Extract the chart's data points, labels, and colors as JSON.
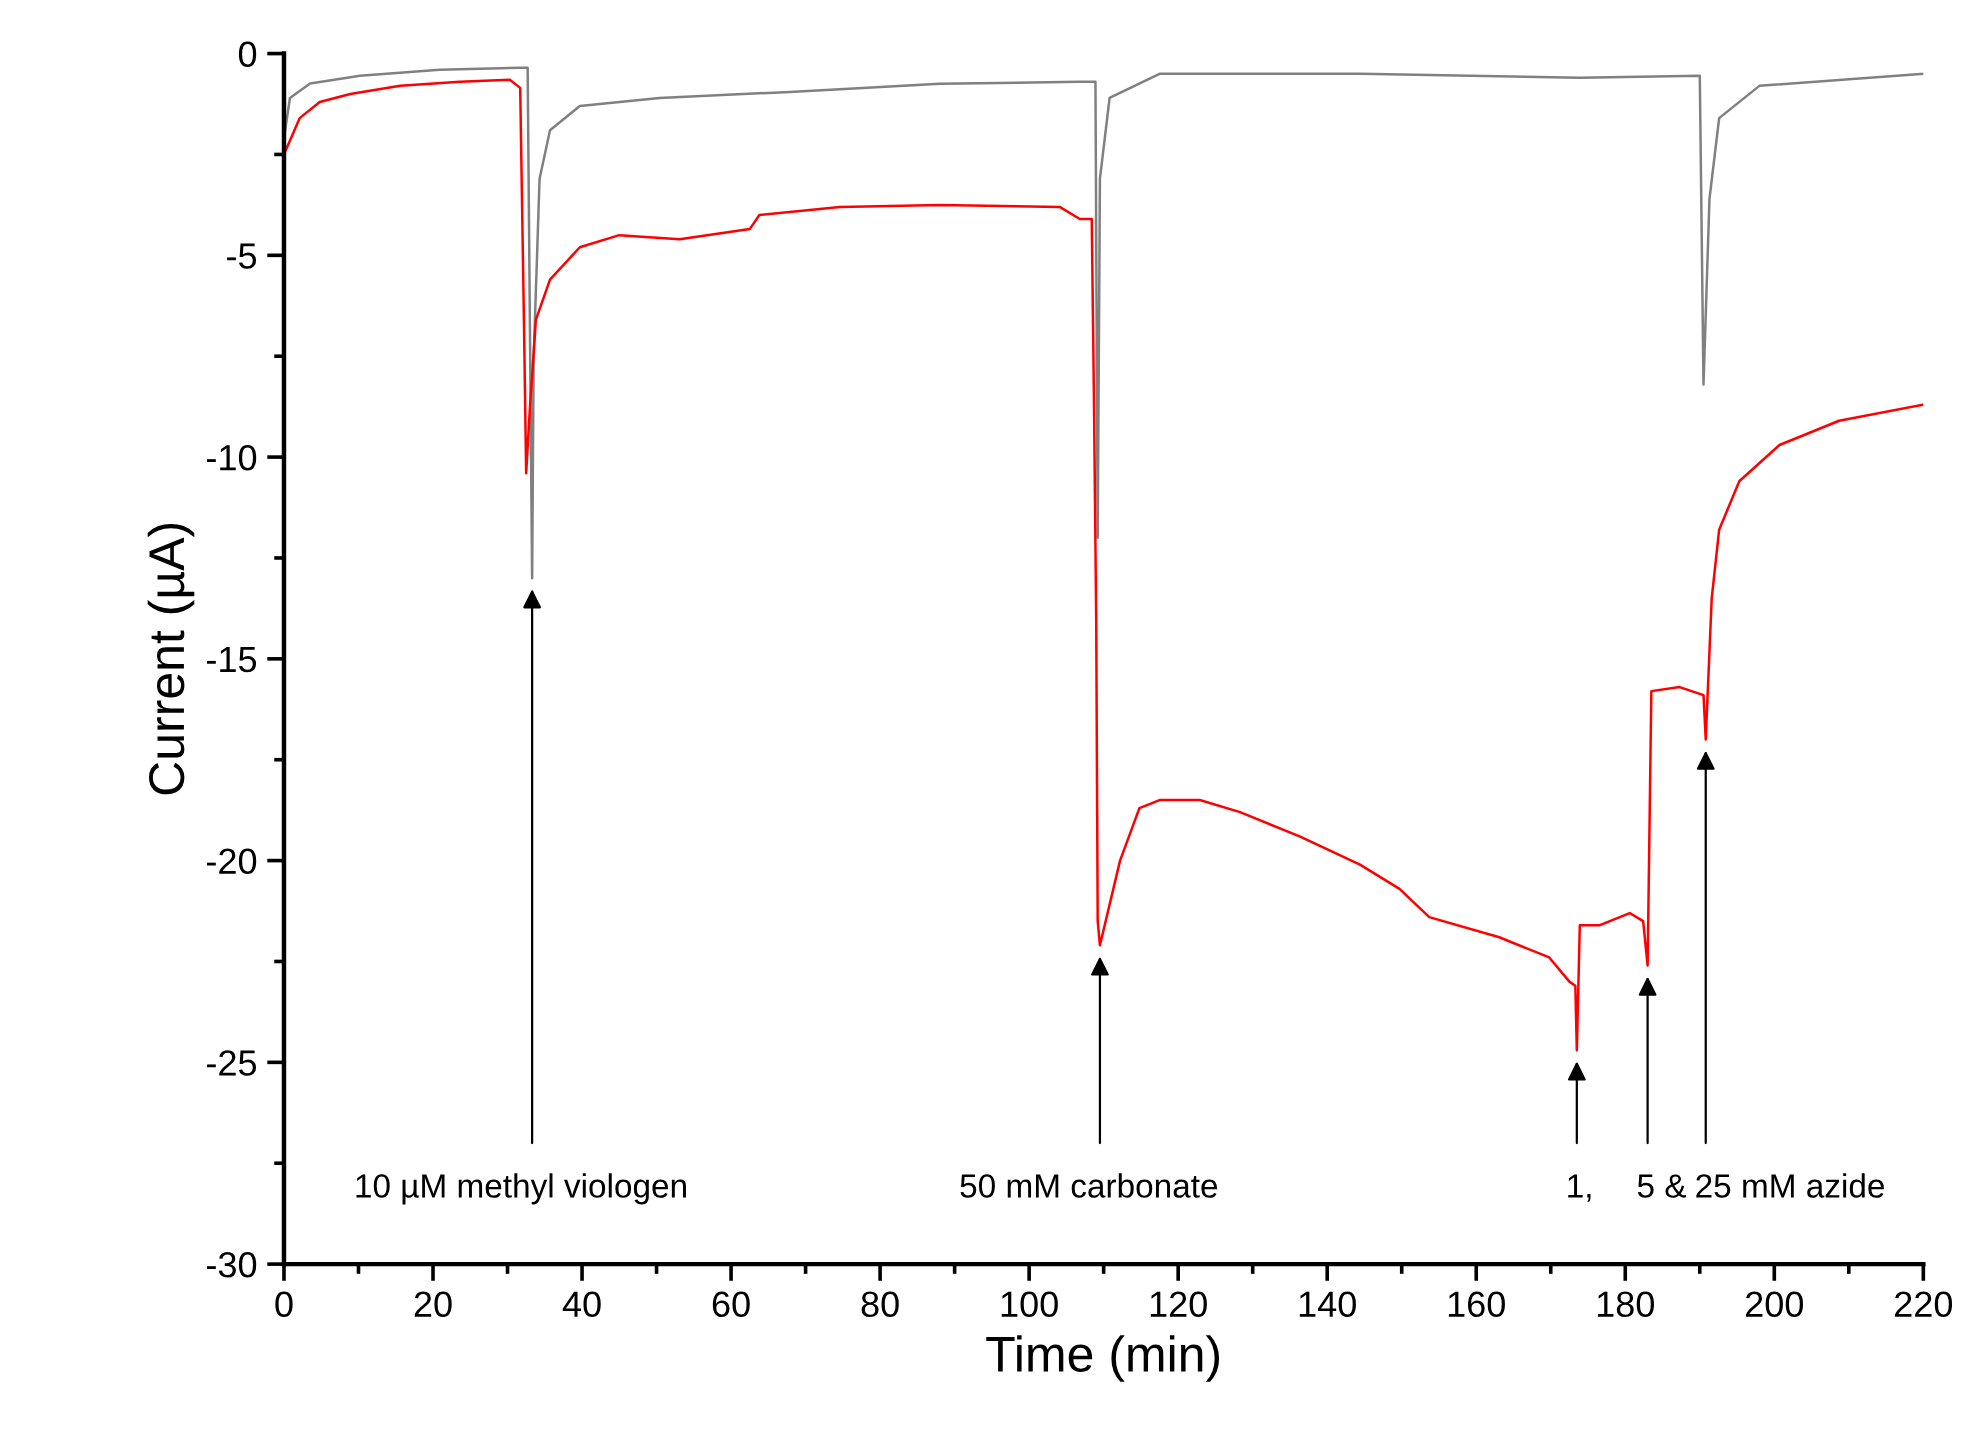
{
  "chart_data": {
    "type": "line",
    "xlabel": "Time (min)",
    "ylabel": "Current (µA)",
    "xlim": [
      0,
      220
    ],
    "xticks": [
      0,
      20,
      40,
      60,
      80,
      100,
      120,
      140,
      160,
      180,
      200,
      220
    ],
    "ylim": [
      -30,
      0
    ],
    "yticks": [
      -30,
      -25,
      -20,
      -15,
      -10,
      -5,
      0
    ],
    "grid": false,
    "legend": false,
    "marker": "none",
    "line_style": "solid",
    "series": [
      {
        "color": "#808080",
        "x": [
          0,
          0.8,
          3.5,
          10.2,
          20.9,
          31.7,
          32.7,
          33.3,
          33.5,
          34.3,
          35.7,
          39.7,
          50.4,
          67.9,
          88,
          106.8,
          108.9,
          109.2,
          109.5,
          110.8,
          117.5,
          144.4,
          173.9,
          190,
          190.5,
          191.3,
          192.6,
          198,
          220
        ],
        "values": [
          -2.1,
          -1.1,
          -0.74,
          -0.55,
          -0.4,
          -0.35,
          -0.35,
          -13.0,
          -7.6,
          -3.1,
          -1.9,
          -1.3,
          -1.1,
          -0.95,
          -0.75,
          -0.7,
          -0.7,
          -12,
          -3.1,
          -1.1,
          -0.5,
          -0.5,
          -0.6,
          -0.55,
          -8.2,
          -3.6,
          -1.6,
          -0.8,
          -0.5
        ]
      },
      {
        "color": "#ff0000",
        "x": [
          0,
          2.1,
          4.8,
          8.9,
          15.6,
          23.6,
          30.3,
          31.7,
          32.2,
          32.5,
          33,
          33.8,
          35.7,
          39.7,
          45,
          53.1,
          62.5,
          63.8,
          74.6,
          88,
          104.1,
          106.8,
          108.4,
          108.7,
          109,
          109.2,
          109.5,
          112.2,
          114.8,
          117.5,
          122.9,
          128.3,
          136.3,
          144.4,
          149.7,
          153.7,
          163.1,
          169.8,
          172.5,
          173.3,
          173.5,
          173.9,
          176.6,
          180.6,
          182.4,
          183,
          183.5,
          187.3,
          190.5,
          190.8,
          191.6,
          192.6,
          195.3,
          200.7,
          208.7,
          220
        ],
        "values": [
          -2.5,
          -1.6,
          -1.2,
          -1.0,
          -0.8,
          -0.7,
          -0.65,
          -0.85,
          -6.6,
          -10.4,
          -8.8,
          -6.6,
          -5.6,
          -4.8,
          -4.5,
          -4.6,
          -4.35,
          -4.0,
          -3.8,
          -3.75,
          -3.8,
          -4.1,
          -4.1,
          -8.6,
          -14,
          -21.5,
          -22.1,
          -20,
          -18.7,
          -18.5,
          -18.5,
          -18.8,
          -19.4,
          -20.1,
          -20.7,
          -21.4,
          -21.9,
          -22.4,
          -23,
          -23.1,
          -24.7,
          -21.6,
          -21.6,
          -21.3,
          -21.5,
          -22.6,
          -15.8,
          -15.7,
          -15.9,
          -17,
          -13.5,
          -11.8,
          -10.6,
          -9.7,
          -9.1,
          -8.7
        ]
      }
    ],
    "annotations": [
      {
        "text": "10 µM methyl viologen",
        "x": 33.3,
        "y": -13.0
      },
      {
        "text": "50 mM carbonate",
        "x": 109.5,
        "y": -22.1
      },
      {
        "text": "1,",
        "x": 173.5,
        "y": -24.7
      },
      {
        "text": "5 &",
        "x": 183,
        "y": -22.6
      },
      {
        "text": "25 mM azide",
        "x": 190.8,
        "y": -17
      }
    ]
  }
}
